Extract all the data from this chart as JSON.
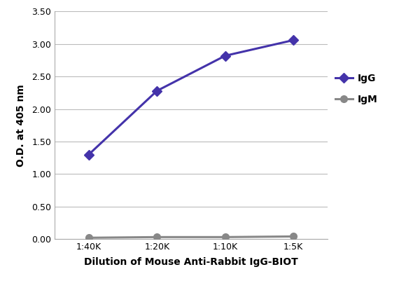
{
  "x_labels": [
    "1:40K",
    "1:20K",
    "1:10K",
    "1:5K"
  ],
  "x_values": [
    1,
    2,
    3,
    4
  ],
  "IgG_values": [
    1.3,
    2.28,
    2.82,
    3.06
  ],
  "IgM_values": [
    0.02,
    0.03,
    0.03,
    0.04
  ],
  "IgG_color": "#4433aa",
  "IgM_color": "#888888",
  "xlabel": "Dilution of Mouse Anti-Rabbit IgG-BIOT",
  "ylabel": "O.D. at 405 nm",
  "ylim": [
    0,
    3.5
  ],
  "yticks": [
    0.0,
    0.5,
    1.0,
    1.5,
    2.0,
    2.5,
    3.0,
    3.5
  ],
  "legend_IgG": "IgG",
  "legend_IgM": "IgM",
  "background_color": "#ffffff",
  "grid_color": "#bbbbbb",
  "marker_size": 7,
  "line_width": 2.2
}
